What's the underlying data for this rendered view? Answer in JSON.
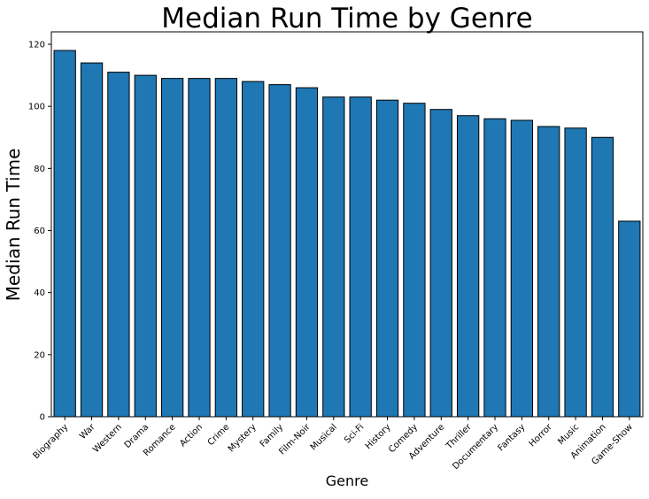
{
  "chart_data": {
    "type": "bar",
    "title": "Median Run Time by Genre",
    "xlabel": "Genre",
    "ylabel": "Median Run Time",
    "categories": [
      "Biography",
      "War",
      "Western",
      "Drama",
      "Romance",
      "Action",
      "Crime",
      "Mystery",
      "Family",
      "Film-Noir",
      "Musical",
      "Sci-Fi",
      "History",
      "Comedy",
      "Adventure",
      "Thriller",
      "Documentary",
      "Fantasy",
      "Horror",
      "Music",
      "Animation",
      "Game-Show"
    ],
    "values": [
      118,
      114,
      111,
      110,
      109,
      109,
      109,
      108,
      107,
      106,
      103,
      103,
      102,
      101,
      99,
      97,
      96,
      95.5,
      93.5,
      93,
      90,
      63
    ],
    "ylim": [
      0,
      124
    ],
    "yticks": [
      0,
      20,
      40,
      60,
      80,
      100,
      120
    ],
    "grid": false,
    "bar_color": "#1f77b4",
    "edge_color": "#000000"
  }
}
